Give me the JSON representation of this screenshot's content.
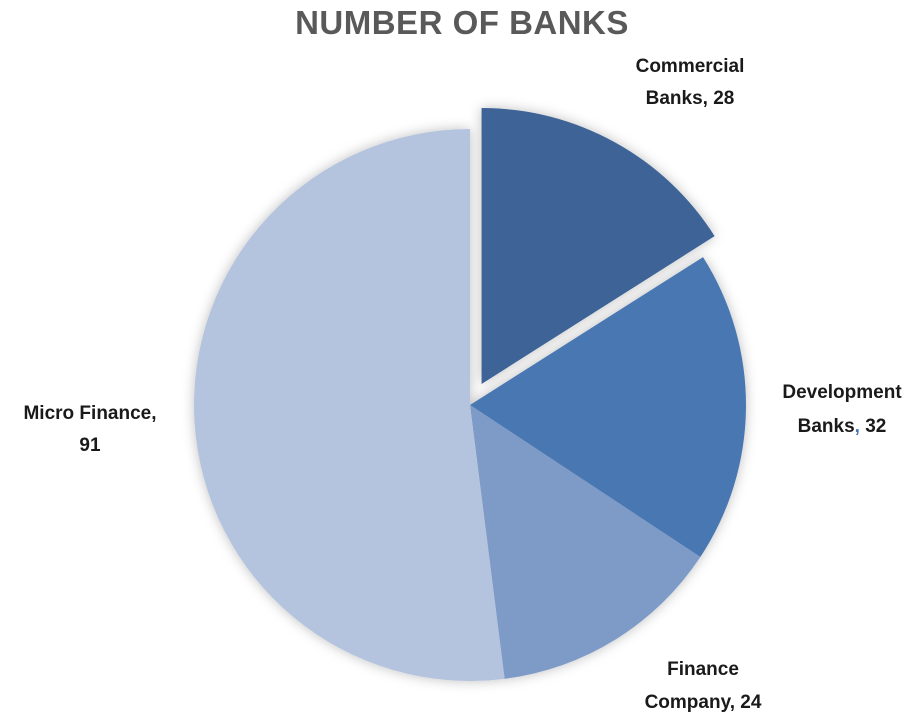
{
  "chart_data": {
    "type": "pie",
    "title": "NUMBER OF BANKS",
    "categories": [
      "Commercial Banks",
      "Development Banks",
      "Finance Company",
      "Micro Finance"
    ],
    "values": [
      28,
      32,
      24,
      91
    ],
    "colors": [
      "#3e6497",
      "#4977b1",
      "#7e9bc8",
      "#b4c3de"
    ],
    "exploded": [
      true,
      false,
      false,
      false
    ],
    "labels": [
      {
        "line1": "Commercial",
        "line2": "Banks, 28"
      },
      {
        "line1": "Development",
        "line2": "Banks",
        "comma": ",",
        "value": "32"
      },
      {
        "line1": "Finance",
        "line2": "Company, 24"
      },
      {
        "line1": "Micro Finance,",
        "line2": "91"
      }
    ],
    "comma_color": "#4977b1",
    "legend": "none"
  }
}
